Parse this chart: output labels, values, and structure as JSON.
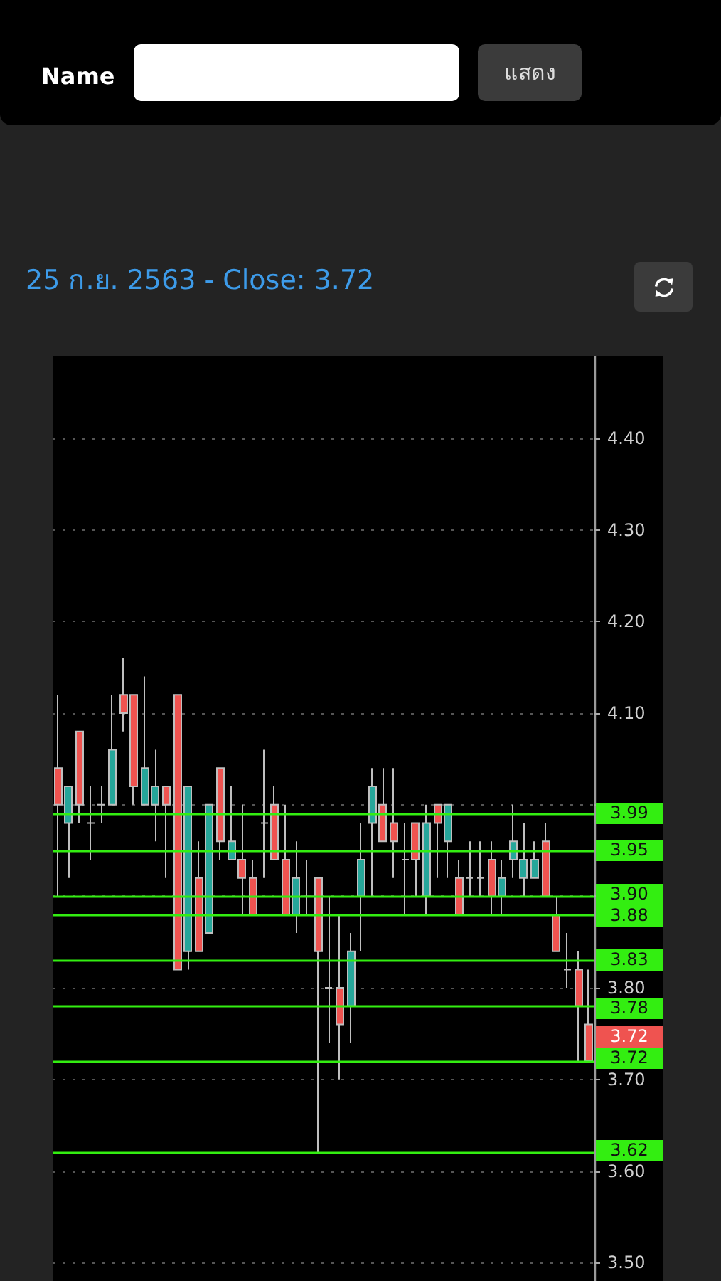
{
  "chart_data": {
    "type": "candlestick",
    "title": "25 ก.ย. 2563 - Close: 3.72",
    "annotations": [
      "Name",
      "แสดง",
      "3.72"
    ],
    "categories": [
      null,
      null,
      null,
      null,
      null,
      null,
      null,
      null,
      null,
      null,
      null,
      null,
      null,
      null,
      null,
      null,
      null,
      null,
      null,
      null,
      null,
      null,
      null,
      null,
      null,
      null,
      null,
      null,
      null,
      null,
      null,
      null,
      null,
      null,
      null,
      null,
      null,
      null,
      null,
      null,
      null,
      null,
      null,
      null,
      null,
      null,
      null,
      null,
      null,
      null
    ],
    "ohlc": [
      [
        4.04,
        4.12,
        3.9,
        4.0
      ],
      [
        3.98,
        4.02,
        3.92,
        4.02
      ],
      [
        4.08,
        4.08,
        3.98,
        4.0
      ],
      [
        3.98,
        4.02,
        3.94,
        3.98
      ],
      [
        4.0,
        4.02,
        3.98,
        4.0
      ],
      [
        4.0,
        4.12,
        4.0,
        4.06
      ],
      [
        4.12,
        4.16,
        4.08,
        4.1
      ],
      [
        4.12,
        4.12,
        4.0,
        4.02
      ],
      [
        4.0,
        4.14,
        4.0,
        4.04
      ],
      [
        4.0,
        4.06,
        3.96,
        4.02
      ],
      [
        4.02,
        4.02,
        3.92,
        4.0
      ],
      [
        4.12,
        4.12,
        3.82,
        3.82
      ],
      [
        3.84,
        4.02,
        3.82,
        4.02
      ],
      [
        3.92,
        3.96,
        3.84,
        3.84
      ],
      [
        3.86,
        4.0,
        3.86,
        4.0
      ],
      [
        4.04,
        4.04,
        3.94,
        3.96
      ],
      [
        3.94,
        4.02,
        3.94,
        3.96
      ],
      [
        3.94,
        4.0,
        3.88,
        3.92
      ],
      [
        3.92,
        3.94,
        3.88,
        3.88
      ],
      [
        3.98,
        4.06,
        3.92,
        3.98
      ],
      [
        4.0,
        4.02,
        3.94,
        3.94
      ],
      [
        3.94,
        4.0,
        3.88,
        3.88
      ],
      [
        3.88,
        3.96,
        3.86,
        3.92
      ],
      [
        3.9,
        3.94,
        3.88,
        3.9
      ],
      [
        3.92,
        3.92,
        3.62,
        3.84
      ],
      [
        3.8,
        3.9,
        3.74,
        3.8
      ],
      [
        3.8,
        3.88,
        3.7,
        3.76
      ],
      [
        3.78,
        3.86,
        3.74,
        3.84
      ],
      [
        3.9,
        3.98,
        3.84,
        3.94
      ],
      [
        3.98,
        4.04,
        3.9,
        4.02
      ],
      [
        4.0,
        4.04,
        3.96,
        3.96
      ],
      [
        3.98,
        4.04,
        3.92,
        3.96
      ],
      [
        3.94,
        3.98,
        3.88,
        3.94
      ],
      [
        3.98,
        3.98,
        3.9,
        3.94
      ],
      [
        3.9,
        4.0,
        3.88,
        3.98
      ],
      [
        4.0,
        4.0,
        3.92,
        3.98
      ],
      [
        3.96,
        4.0,
        3.92,
        4.0
      ],
      [
        3.92,
        3.94,
        3.88,
        3.88
      ],
      [
        3.92,
        3.96,
        3.9,
        3.92
      ],
      [
        3.92,
        3.96,
        3.9,
        3.92
      ],
      [
        3.94,
        3.96,
        3.88,
        3.9
      ],
      [
        3.9,
        3.94,
        3.88,
        3.92
      ],
      [
        3.94,
        4.0,
        3.92,
        3.96
      ],
      [
        3.92,
        3.98,
        3.9,
        3.94
      ],
      [
        3.92,
        3.96,
        3.92,
        3.94
      ],
      [
        3.96,
        3.98,
        3.9,
        3.9
      ],
      [
        3.88,
        3.9,
        3.84,
        3.84
      ],
      [
        3.82,
        3.86,
        3.8,
        3.82
      ],
      [
        3.82,
        3.84,
        3.72,
        3.78
      ],
      [
        3.76,
        3.82,
        3.72,
        3.72
      ]
    ],
    "colors": [
      "#ef5350",
      "#26a69a",
      "#ef5350",
      "#c0c0c0",
      "#c0c0c0",
      "#26a69a",
      "#ef5350",
      "#ef5350",
      "#26a69a",
      "#26a69a",
      "#ef5350",
      "#ef5350",
      "#26a69a",
      "#ef5350",
      "#26a69a",
      "#ef5350",
      "#26a69a",
      "#ef5350",
      "#ef5350",
      "#c0c0c0",
      "#ef5350",
      "#ef5350",
      "#26a69a",
      "#c0c0c0",
      "#ef5350",
      "#c0c0c0",
      "#ef5350",
      "#26a69a",
      "#26a69a",
      "#26a69a",
      "#ef5350",
      "#ef5350",
      "#c0c0c0",
      "#ef5350",
      "#26a69a",
      "#ef5350",
      "#26a69a",
      "#ef5350",
      "#c0c0c0",
      "#c0c0c0",
      "#ef5350",
      "#26a69a",
      "#26a69a",
      "#26a69a",
      "#26a69a",
      "#ef5350",
      "#ef5350",
      "#c0c0c0",
      "#ef5350",
      "#ef5350"
    ],
    "ylim": [
      3.48,
      4.49
    ],
    "yticks": [
      {
        "value": 3.5,
        "label": "3.50"
      },
      {
        "value": 3.6,
        "label": "3.60"
      },
      {
        "value": 3.7,
        "label": "3.70"
      },
      {
        "value": 3.8,
        "label": "3.80"
      },
      {
        "value": 3.9,
        "label": null
      },
      {
        "value": 4.0,
        "label": null
      },
      {
        "value": 4.1,
        "label": "4.10"
      },
      {
        "value": 4.2,
        "label": "4.20"
      },
      {
        "value": 4.3,
        "label": "4.30"
      },
      {
        "value": 4.4,
        "label": "4.40"
      }
    ],
    "grid": "y",
    "tick_labels": "y",
    "ref_lines": [
      {
        "axis": "y",
        "value": 3.99,
        "label": "3.99",
        "color": "#33ee11"
      },
      {
        "axis": "y",
        "value": 3.95,
        "label": "3.95",
        "color": "#33ee11"
      },
      {
        "axis": "y",
        "value": 3.9,
        "label": "3.90",
        "color": "#33ee11"
      },
      {
        "axis": "y",
        "value": 3.88,
        "label": "3.88",
        "color": "#33ee11"
      },
      {
        "axis": "y",
        "value": 3.83,
        "label": "3.83",
        "color": "#33ee11"
      },
      {
        "axis": "y",
        "value": 3.78,
        "label": "3.78",
        "color": "#33ee11"
      },
      {
        "axis": "y",
        "value": 3.72,
        "label": "3.72",
        "color": "#33ee11"
      },
      {
        "axis": "y",
        "value": 3.62,
        "label": "3.62",
        "color": "#33ee11"
      }
    ]
  }
}
